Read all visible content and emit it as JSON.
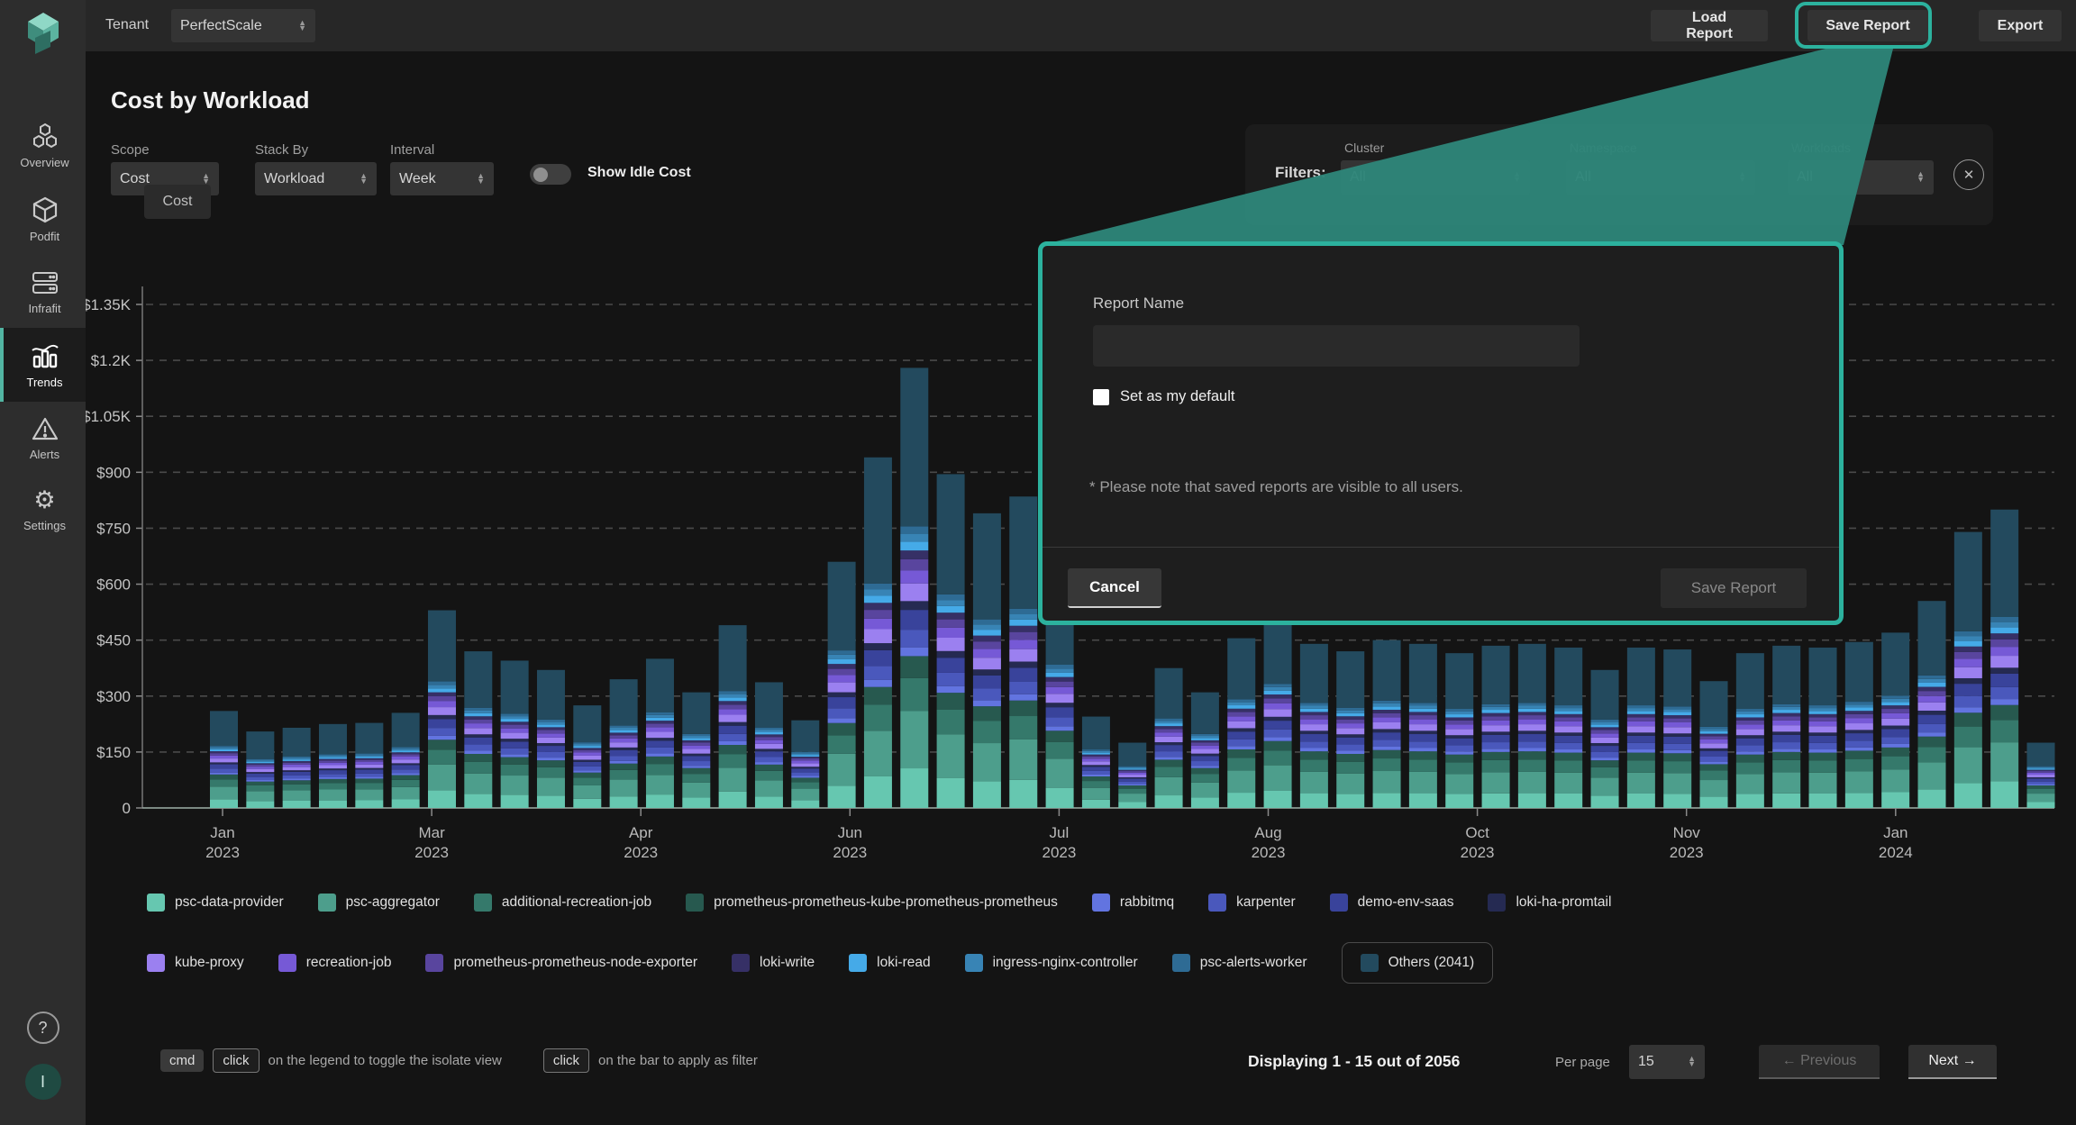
{
  "colors": {
    "accent": "#2cb29e",
    "beam": "#2e8579",
    "active_nav": "#52b5a2"
  },
  "topbar": {
    "tenant_label": "Tenant",
    "tenant_value": "PerfectScale",
    "load_report": "Load Report",
    "save_report": "Save Report",
    "export": "Export"
  },
  "sidebar": {
    "items": [
      {
        "label": "Overview"
      },
      {
        "label": "Podfit"
      },
      {
        "label": "Infrafit"
      },
      {
        "label": "Trends"
      },
      {
        "label": "Alerts"
      },
      {
        "label": "Settings"
      }
    ],
    "active": "Trends",
    "help_label": "?",
    "avatar_initial": "I"
  },
  "page": {
    "title": "Cost by Workload"
  },
  "controls": {
    "scope_label": "Scope",
    "scope_value": "Cost",
    "stackby_label": "Stack By",
    "stackby_value": "Workload",
    "interval_label": "Interval",
    "interval_value": "Week",
    "idle_toggle_label": "Show Idle Cost",
    "idle_toggle_on": false
  },
  "filters": {
    "heading": "Filters:",
    "fields": [
      {
        "label": "Cluster",
        "value": "All"
      },
      {
        "label": "Namespace",
        "value": "All"
      },
      {
        "label": "Workloads",
        "value": "All"
      }
    ],
    "close_glyph": "✕"
  },
  "modal": {
    "report_name_label": "Report Name",
    "report_name_value": "",
    "checkbox_label": "Set as my default",
    "checkbox_checked": false,
    "note": "* Please note that saved reports are visible to all users.",
    "cancel_label": "Cancel",
    "save_label": "Save Report"
  },
  "chart_data": {
    "type": "bar",
    "stacked": true,
    "unit_chip": "Cost",
    "ylim": [
      0,
      1350
    ],
    "y_tick_values": [
      1350,
      1200,
      1050,
      900,
      750,
      600,
      450,
      300,
      150,
      0
    ],
    "y_tick_labels": [
      "$1.35K",
      "$1.2K",
      "$1.05K",
      "$900",
      "$750",
      "$600",
      "$450",
      "$300",
      "$150",
      "0"
    ],
    "x_labels": [
      [
        "Jan",
        "2023"
      ],
      [
        "Mar",
        "2023"
      ],
      [
        "Apr",
        "2023"
      ],
      [
        "Jun",
        "2023"
      ],
      [
        "Jul",
        "2023"
      ],
      [
        "Aug",
        "2023"
      ],
      [
        "Oct",
        "2023"
      ],
      [
        "Nov",
        "2023"
      ],
      [
        "Jan",
        "2024"
      ]
    ],
    "grid": "dashed-horizontal",
    "legend_position": "bottom",
    "totals": [
      260,
      205,
      215,
      225,
      228,
      255,
      530,
      420,
      395,
      370,
      275,
      345,
      400,
      310,
      490,
      337,
      235,
      660,
      940,
      1180,
      895,
      790,
      835,
      600,
      245,
      175,
      375,
      310,
      455,
      520,
      440,
      420,
      450,
      440,
      415,
      435,
      440,
      430,
      370,
      430,
      425,
      340,
      415,
      435,
      430,
      445,
      470,
      555,
      740,
      800,
      175
    ],
    "series": [
      {
        "name": "psc-data-provider",
        "color": "#66C7B0",
        "fraction": 0.09
      },
      {
        "name": "psc-aggregator",
        "color": "#4D9E8C",
        "fraction": 0.13
      },
      {
        "name": "additional-recreation-job",
        "color": "#35796B",
        "fraction": 0.075
      },
      {
        "name": "prometheus-prometheus-kube-prometheus-prometheus",
        "color": "#27594F",
        "fraction": 0.05
      },
      {
        "name": "rabbitmq",
        "color": "#6274E0",
        "fraction": 0.02
      },
      {
        "name": "karpenter",
        "color": "#4A58BC",
        "fraction": 0.04
      },
      {
        "name": "demo-env-saas",
        "color": "#39439B",
        "fraction": 0.045
      },
      {
        "name": "loki-ha-promtail",
        "color": "#252A52",
        "fraction": 0.02
      },
      {
        "name": "kube-proxy",
        "color": "#9B80F0",
        "fraction": 0.04
      },
      {
        "name": "recreation-job",
        "color": "#7659D6",
        "fraction": 0.03
      },
      {
        "name": "prometheus-prometheus-node-exporter",
        "color": "#59459E",
        "fraction": 0.025
      },
      {
        "name": "loki-write",
        "color": "#363066",
        "fraction": 0.02
      },
      {
        "name": "loki-read",
        "color": "#45AAE8",
        "fraction": 0.02
      },
      {
        "name": "ingress-nginx-controller",
        "color": "#3884B5",
        "fraction": 0.018
      },
      {
        "name": "psc-alerts-worker",
        "color": "#2E6B94",
        "fraction": 0.017
      },
      {
        "name": "Others (2041)",
        "color": "#234A5E",
        "fraction": 0.36,
        "boxed": true
      }
    ]
  },
  "footer": {
    "hint1_kbd1": "cmd",
    "hint1_kbd2": "click",
    "hint1_text": "on the legend to toggle the isolate view",
    "hint2_kbd": "click",
    "hint2_text": "on the bar to apply as filter",
    "displaying": "Displaying 1 - 15 out of 2056",
    "per_page_label": "Per page",
    "per_page_value": "15",
    "prev_label": "Previous",
    "next_label": "Next",
    "prev_arrow": "←",
    "next_arrow": "→"
  }
}
